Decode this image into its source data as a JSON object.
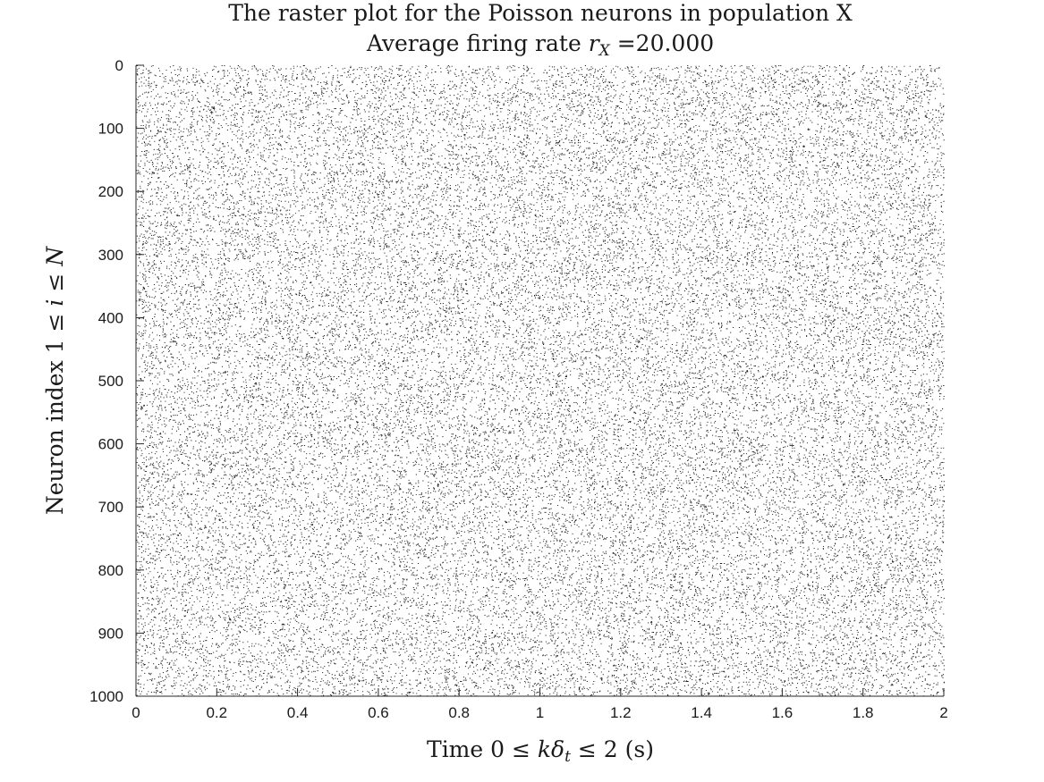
{
  "chart_data": {
    "type": "scatter",
    "title": "The raster plot for the Poisson neurons in population X",
    "subtitle": {
      "prefix": "Average firing rate ",
      "var": "r",
      "var_sub": "X",
      "suffix": " =20.000"
    },
    "xlabel": {
      "prefix": "Time 0 ≤ ",
      "k": "k",
      "delta": "δ",
      "delta_sub": "t",
      "suffix": " ≤ 2 (s)"
    },
    "ylabel": {
      "prefix": "Neuron index 1 ≤ ",
      "i": "i",
      "middle": " ≤ ",
      "N": "N"
    },
    "xlim": [
      0,
      2
    ],
    "ylim": [
      0,
      1000
    ],
    "y_reversed": true,
    "xticks": [
      "0",
      "0.2",
      "0.4",
      "0.6",
      "0.8",
      "1",
      "1.2",
      "1.4",
      "1.6",
      "1.8",
      "2"
    ],
    "yticks": [
      "0",
      "100",
      "200",
      "300",
      "400",
      "500",
      "600",
      "700",
      "800",
      "900",
      "1000"
    ],
    "grid": false,
    "marker_color": "#1a1a1a",
    "n_neurons": 1000,
    "duration_s": 2,
    "firing_rate_hz": 20
  }
}
